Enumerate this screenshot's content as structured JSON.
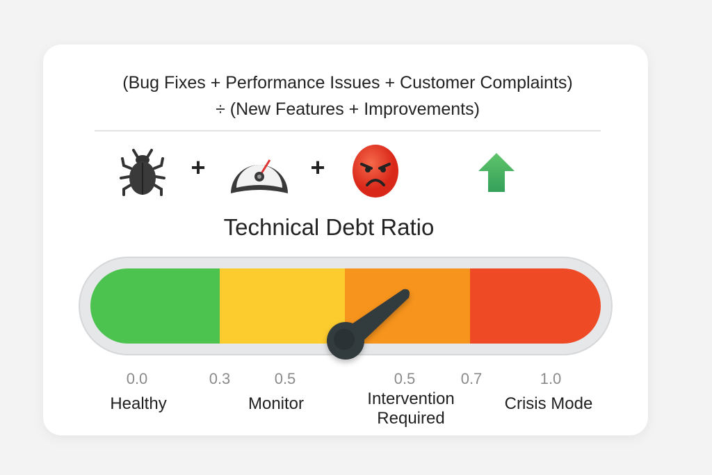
{
  "formula": {
    "line1": "(Bug Fixes + Performance Issues + Customer Complaints)",
    "line2": "÷ (New Features + Improvements)"
  },
  "icons": [
    "bug-icon",
    "speedometer-icon",
    "angry-face-icon",
    "up-arrow-icon"
  ],
  "operators": [
    "+",
    "+"
  ],
  "title": "Technical Debt Ratio",
  "gauge": {
    "segments": [
      {
        "label": "Healthy",
        "color": "#4cc24f"
      },
      {
        "label": "Monitor",
        "color": "#fccb2e"
      },
      {
        "label": "Intervention Required",
        "color": "#f7941d"
      },
      {
        "label": "Crisis Mode",
        "color": "#ef4a26"
      }
    ],
    "ticks": [
      "0.0",
      "0.3",
      "0.5",
      "0.5",
      "0.7",
      "1.0"
    ],
    "zones": [
      "Healthy",
      "Monitor",
      "Intervention",
      "Required",
      "Crisis Mode"
    ]
  }
}
